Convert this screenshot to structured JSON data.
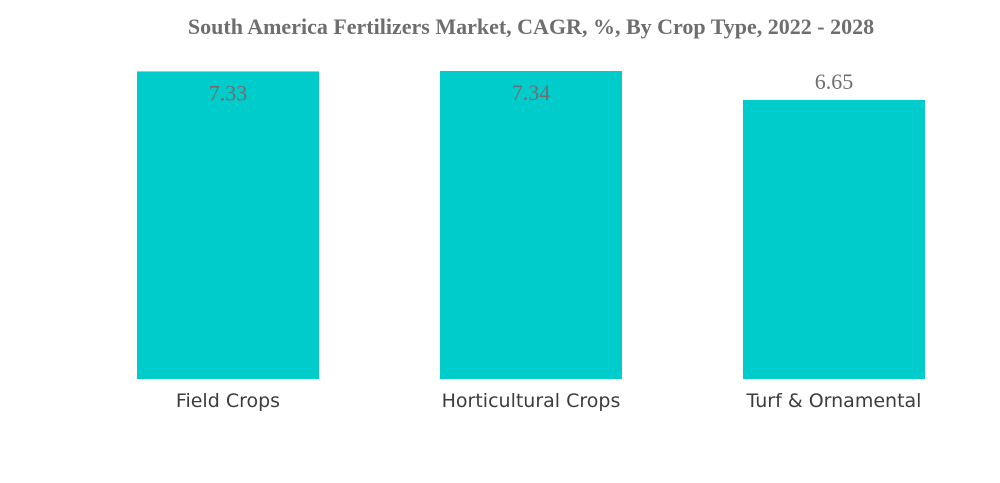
{
  "chart_data": {
    "type": "bar",
    "title": "South America Fertilizers Market, CAGR, %, By Crop Type, 2022 - 2028",
    "categories": [
      "Field Crops",
      "Horticultural Crops",
      "Turf & Ornamental"
    ],
    "values": [
      7.33,
      7.34,
      6.65
    ],
    "value_labels": [
      "7.33",
      "7.34",
      "6.65"
    ],
    "xlabel": "",
    "ylabel": "",
    "ylim": [
      0,
      7.34
    ],
    "grid": false,
    "legend": "none",
    "colors": {
      "bar": "#00cccc",
      "title": "#6e6e6e",
      "value_label": "#6e6e6e",
      "tick_label": "#3c3c3c"
    }
  }
}
